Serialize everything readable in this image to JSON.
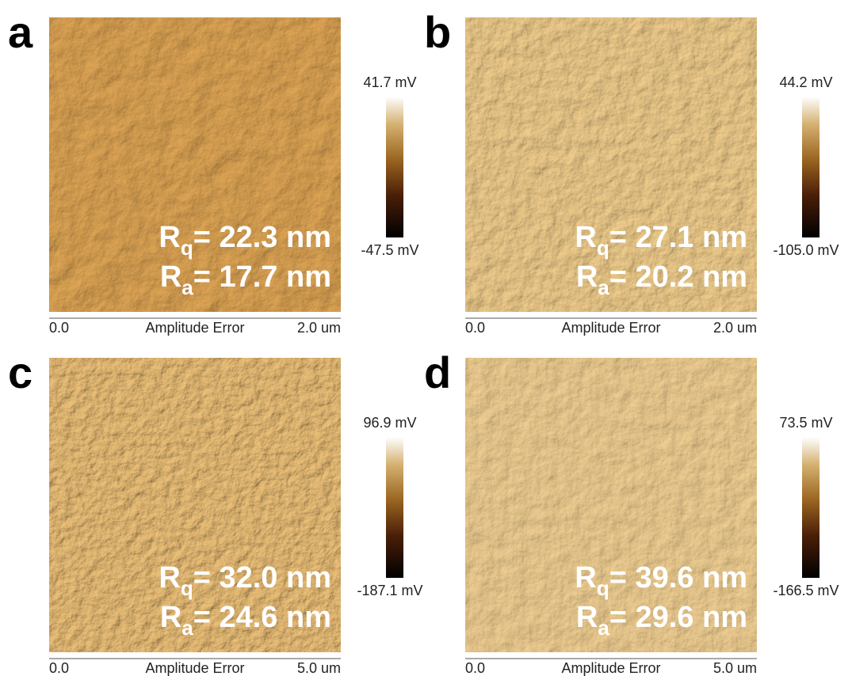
{
  "panels": [
    {
      "label": "a",
      "colorbar": {
        "max": "41.7 mV",
        "min": "-47.5 mV"
      },
      "rq": {
        "symbol": "R",
        "sub": "q",
        "text": "= 22.3 nm"
      },
      "ra": {
        "symbol": "R",
        "sub": "a",
        "text": "= 17.7 nm"
      },
      "axis": {
        "start": "0.0",
        "title": "Amplitude Error",
        "end": "2.0 um"
      }
    },
    {
      "label": "b",
      "colorbar": {
        "max": "44.2 mV",
        "min": "-105.0 mV"
      },
      "rq": {
        "symbol": "R",
        "sub": "q",
        "text": "= 27.1 nm"
      },
      "ra": {
        "symbol": "R",
        "sub": "a",
        "text": "= 20.2 nm"
      },
      "axis": {
        "start": "0.0",
        "title": "Amplitude Error",
        "end": "2.0 um"
      }
    },
    {
      "label": "c",
      "colorbar": {
        "max": "96.9 mV",
        "min": "-187.1 mV"
      },
      "rq": {
        "symbol": "R",
        "sub": "q",
        "text": "= 32.0 nm"
      },
      "ra": {
        "symbol": "R",
        "sub": "a",
        "text": "= 24.6 nm"
      },
      "axis": {
        "start": "0.0",
        "title": "Amplitude Error",
        "end": "5.0 um"
      }
    },
    {
      "label": "d",
      "colorbar": {
        "max": "73.5 mV",
        "min": "-166.5 mV"
      },
      "rq": {
        "symbol": "R",
        "sub": "q",
        "text": "= 39.6 nm"
      },
      "ra": {
        "symbol": "R",
        "sub": "a",
        "text": "= 29.6 nm"
      },
      "axis": {
        "start": "0.0",
        "title": "Amplitude Error",
        "end": "5.0 um"
      }
    }
  ]
}
